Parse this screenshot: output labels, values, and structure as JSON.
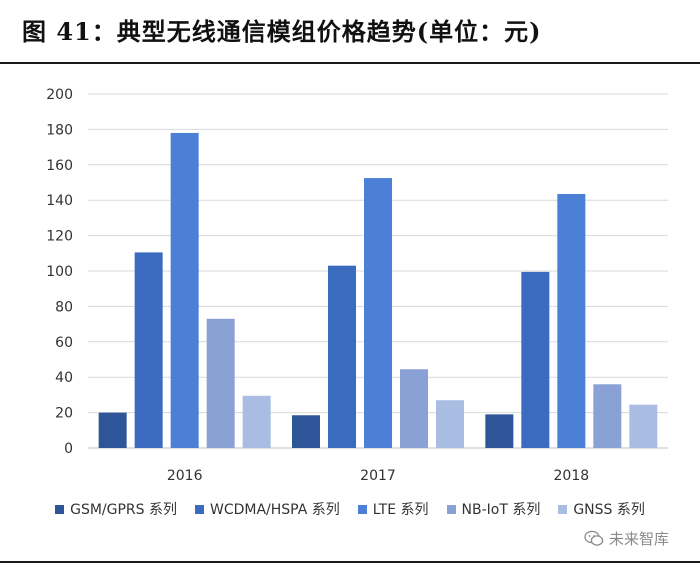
{
  "title": "图  41：典型无线通信模组价格趋势(单位：元)",
  "watermark": {
    "icon": "wechat-icon",
    "text": "未来智库"
  },
  "chart_data": {
    "type": "bar",
    "categories": [
      "2016",
      "2017",
      "2018"
    ],
    "series": [
      {
        "name": "GSM/GPRS 系列",
        "color": "#2e5597",
        "values": [
          20,
          18.5,
          19
        ]
      },
      {
        "name": "WCDMA/HSPA 系列",
        "color": "#3a6bbf",
        "values": [
          110.5,
          103,
          99.5
        ]
      },
      {
        "name": "LTE 系列",
        "color": "#4b80d6",
        "values": [
          178,
          152.5,
          143.5
        ]
      },
      {
        "name": "NB-IoT 系列",
        "color": "#8aa1d6",
        "values": [
          73,
          44.5,
          36
        ]
      },
      {
        "name": "GNSS 系列",
        "color": "#a9bde3",
        "values": [
          29.5,
          27,
          24.5
        ]
      }
    ],
    "ylim": [
      0,
      200
    ],
    "yticks": [
      0,
      20,
      40,
      60,
      80,
      100,
      120,
      140,
      160,
      180,
      200
    ],
    "grid": true,
    "legend": "bottom"
  }
}
